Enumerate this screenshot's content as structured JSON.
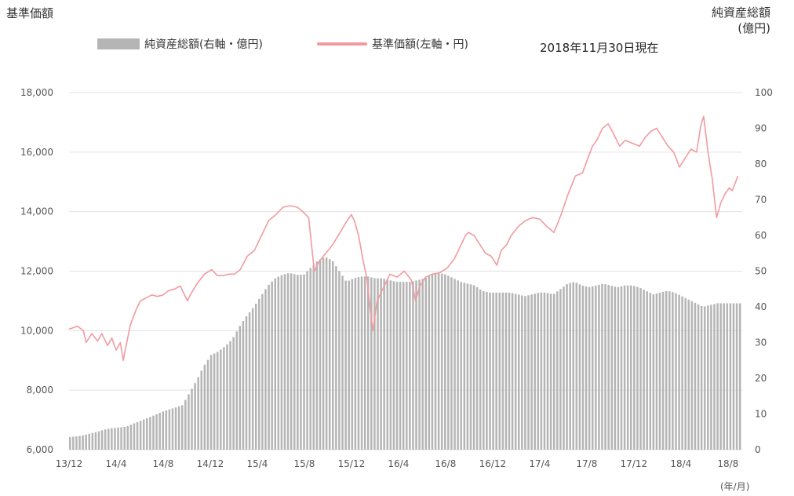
{
  "header": {
    "left_axis_title": "基準価額",
    "right_axis_title_line1": "純資産総額",
    "right_axis_title_line2": "(億円)",
    "as_of": "2018年11月30日現在"
  },
  "legend": {
    "bar_label": "純資産総額(右軸・億円)",
    "line_label": "基準価額(左軸・円)"
  },
  "x_axis_unit": "(年/月)",
  "colors": {
    "bar": "#b5b5b5",
    "line": "#f19ba1",
    "grid": "#e3e3e3"
  },
  "chart_data": {
    "type": "bar+line",
    "x_tick_labels": [
      "13/12",
      "14/4",
      "14/8",
      "14/12",
      "15/4",
      "15/8",
      "15/12",
      "16/4",
      "16/8",
      "16/12",
      "17/4",
      "17/8",
      "17/12",
      "18/4",
      "18/8"
    ],
    "left_axis": {
      "label": "基準価額",
      "unit": "円",
      "ylim": [
        6000,
        18000
      ],
      "ticks": [
        "6,000",
        "8,000",
        "10,000",
        "12,000",
        "14,000",
        "16,000",
        "18,000"
      ]
    },
    "right_axis": {
      "label": "純資産総額",
      "unit": "億円",
      "ylim": [
        0,
        100
      ],
      "ticks": [
        "0",
        "10",
        "20",
        "30",
        "40",
        "50",
        "60",
        "70",
        "80",
        "90",
        "100"
      ]
    },
    "series": [
      {
        "name": "純資産総額(右軸・億円)",
        "kind": "bar",
        "axis": "right",
        "points": [
          [
            0,
            3.5
          ],
          [
            0.5,
            3.7
          ],
          [
            1,
            4.0
          ],
          [
            1.5,
            4.5
          ],
          [
            2,
            5.0
          ],
          [
            2.5,
            5.6
          ],
          [
            3,
            6.0
          ],
          [
            3.5,
            6.2
          ],
          [
            4,
            6.4
          ],
          [
            4.5,
            7.2
          ],
          [
            5,
            8.0
          ],
          [
            5.5,
            8.8
          ],
          [
            6,
            9.6
          ],
          [
            6.5,
            10.5
          ],
          [
            7,
            11.2
          ],
          [
            7.5,
            11.8
          ],
          [
            8,
            12.5
          ],
          [
            8.5,
            16
          ],
          [
            9,
            19.5
          ],
          [
            9.5,
            23.5
          ],
          [
            10,
            26.5
          ],
          [
            10.5,
            27.5
          ],
          [
            11,
            29
          ],
          [
            11.5,
            31
          ],
          [
            12,
            34.5
          ],
          [
            12.5,
            37.5
          ],
          [
            13,
            40
          ],
          [
            13.5,
            43
          ],
          [
            14,
            46
          ],
          [
            14.5,
            48
          ],
          [
            15,
            49
          ],
          [
            15.5,
            49.5
          ],
          [
            16,
            49
          ],
          [
            16.5,
            49
          ],
          [
            17,
            51
          ],
          [
            17.5,
            53
          ],
          [
            18,
            54
          ],
          [
            18.5,
            53
          ],
          [
            19,
            50
          ],
          [
            19.5,
            47
          ],
          [
            20,
            48
          ],
          [
            20.5,
            48.5
          ],
          [
            21,
            48.5
          ],
          [
            21.5,
            48
          ],
          [
            22,
            48
          ],
          [
            22.5,
            47.5
          ],
          [
            23,
            47
          ],
          [
            23.5,
            47
          ],
          [
            24,
            47
          ],
          [
            24.5,
            47.5
          ],
          [
            25,
            48
          ],
          [
            25.5,
            49
          ],
          [
            26,
            49.5
          ],
          [
            26.5,
            49
          ],
          [
            27,
            48
          ],
          [
            27.5,
            47
          ],
          [
            28,
            46.5
          ],
          [
            28.5,
            46
          ],
          [
            29,
            44.5
          ],
          [
            29.5,
            44
          ],
          [
            30,
            44
          ],
          [
            30.5,
            44
          ],
          [
            31,
            44
          ],
          [
            31.5,
            43.5
          ],
          [
            32,
            43
          ],
          [
            32.5,
            43.5
          ],
          [
            33,
            44
          ],
          [
            33.5,
            44
          ],
          [
            34,
            43.5
          ],
          [
            34.5,
            45
          ],
          [
            35,
            46.5
          ],
          [
            35.5,
            47
          ],
          [
            36,
            46
          ],
          [
            36.5,
            45.5
          ],
          [
            37,
            46
          ],
          [
            37.5,
            46.5
          ],
          [
            38,
            46
          ],
          [
            38.5,
            45.5
          ],
          [
            39,
            46
          ],
          [
            39.5,
            46
          ],
          [
            40,
            45.5
          ],
          [
            40.5,
            44.5
          ],
          [
            41,
            43.5
          ],
          [
            41.5,
            44
          ],
          [
            42,
            44.5
          ],
          [
            42.5,
            44
          ],
          [
            43,
            43
          ],
          [
            43.5,
            42
          ],
          [
            44,
            41
          ],
          [
            44.5,
            40
          ],
          [
            45,
            40.5
          ],
          [
            45.5,
            41
          ]
        ]
      },
      {
        "name": "基準価額(左軸・円)",
        "kind": "line",
        "axis": "left",
        "points": [
          [
            0,
            10050
          ],
          [
            0.6,
            10150
          ],
          [
            1,
            10000
          ],
          [
            1.2,
            9600
          ],
          [
            1.6,
            9900
          ],
          [
            2,
            9650
          ],
          [
            2.3,
            9900
          ],
          [
            2.7,
            9500
          ],
          [
            3,
            9750
          ],
          [
            3.3,
            9350
          ],
          [
            3.6,
            9600
          ],
          [
            3.8,
            9000
          ],
          [
            4,
            9500
          ],
          [
            4.3,
            10200
          ],
          [
            4.7,
            10700
          ],
          [
            5,
            11000
          ],
          [
            5.4,
            11100
          ],
          [
            5.8,
            11200
          ],
          [
            6.2,
            11150
          ],
          [
            6.6,
            11200
          ],
          [
            7,
            11350
          ],
          [
            7.4,
            11400
          ],
          [
            7.8,
            11500
          ],
          [
            8,
            11300
          ],
          [
            8.3,
            11000
          ],
          [
            8.5,
            11200
          ],
          [
            9,
            11600
          ],
          [
            9.5,
            11900
          ],
          [
            10,
            12050
          ],
          [
            10.4,
            11850
          ],
          [
            10.8,
            11850
          ],
          [
            11.2,
            11900
          ],
          [
            11.6,
            11900
          ],
          [
            12,
            12050
          ],
          [
            12.5,
            12500
          ],
          [
            13,
            12700
          ],
          [
            13.5,
            13200
          ],
          [
            14,
            13700
          ],
          [
            14.5,
            13900
          ],
          [
            15,
            14150
          ],
          [
            15.5,
            14200
          ],
          [
            16,
            14150
          ],
          [
            16.4,
            14000
          ],
          [
            16.8,
            13800
          ],
          [
            17,
            12900
          ],
          [
            17.2,
            12000
          ],
          [
            17.5,
            12300
          ],
          [
            18,
            12600
          ],
          [
            18.5,
            12900
          ],
          [
            19,
            13300
          ],
          [
            19.5,
            13700
          ],
          [
            19.8,
            13900
          ],
          [
            20,
            13700
          ],
          [
            20.3,
            13200
          ],
          [
            20.6,
            12400
          ],
          [
            20.9,
            11700
          ],
          [
            21.1,
            10800
          ],
          [
            21.3,
            10000
          ],
          [
            21.6,
            11000
          ],
          [
            22,
            11400
          ],
          [
            22.5,
            11900
          ],
          [
            23,
            11800
          ],
          [
            23.5,
            12000
          ],
          [
            24,
            11700
          ],
          [
            24.3,
            11000
          ],
          [
            24.6,
            11500
          ],
          [
            25,
            11800
          ],
          [
            25.5,
            11900
          ],
          [
            26,
            11950
          ],
          [
            26.5,
            12100
          ],
          [
            27,
            12400
          ],
          [
            27.4,
            12800
          ],
          [
            27.8,
            13200
          ],
          [
            28,
            13300
          ],
          [
            28.4,
            13200
          ],
          [
            28.8,
            12900
          ],
          [
            29.2,
            12600
          ],
          [
            29.6,
            12500
          ],
          [
            30,
            12200
          ],
          [
            30.3,
            12700
          ],
          [
            30.7,
            12900
          ],
          [
            31,
            13200
          ],
          [
            31.5,
            13500
          ],
          [
            32,
            13700
          ],
          [
            32.5,
            13800
          ],
          [
            33,
            13750
          ],
          [
            33.5,
            13500
          ],
          [
            34,
            13300
          ],
          [
            34.5,
            13900
          ],
          [
            35,
            14600
          ],
          [
            35.5,
            15200
          ],
          [
            36,
            15300
          ],
          [
            36.3,
            15700
          ],
          [
            36.7,
            16200
          ],
          [
            37,
            16400
          ],
          [
            37.4,
            16800
          ],
          [
            37.8,
            16950
          ],
          [
            38.2,
            16600
          ],
          [
            38.6,
            16200
          ],
          [
            39,
            16400
          ],
          [
            39.5,
            16300
          ],
          [
            40,
            16200
          ],
          [
            40.4,
            16500
          ],
          [
            40.8,
            16700
          ],
          [
            41.2,
            16800
          ],
          [
            41.6,
            16500
          ],
          [
            42,
            16200
          ],
          [
            42.4,
            16000
          ],
          [
            42.8,
            15500
          ],
          [
            43.2,
            15800
          ],
          [
            43.6,
            16100
          ],
          [
            44,
            16000
          ],
          [
            44.3,
            16900
          ],
          [
            44.5,
            17200
          ],
          [
            44.8,
            16000
          ],
          [
            45.1,
            15100
          ],
          [
            45.4,
            13800
          ],
          [
            45.7,
            14300
          ],
          [
            46,
            14600
          ],
          [
            46.3,
            14800
          ],
          [
            46.5,
            14700
          ],
          [
            46.9,
            15200
          ]
        ]
      }
    ],
    "grid": true,
    "legend_position": "top-left"
  }
}
